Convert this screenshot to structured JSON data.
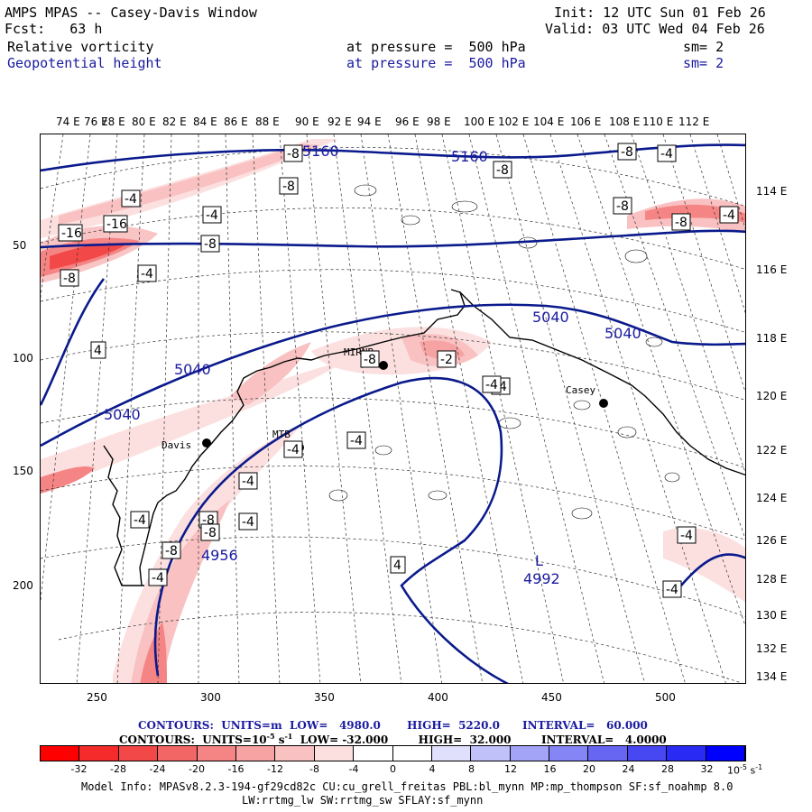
{
  "header": {
    "title": "AMPS MPAS -- Casey-Davis Window",
    "fcst": "Fcst:   63 h",
    "init": "Init: 12 UTC Sun 01 Feb 26",
    "valid": "Valid: 03 UTC Wed 04 Feb 26",
    "field1_name": "Relative vorticity",
    "field1_level": "at pressure =  500 hPa",
    "field1_sm": "sm= 2",
    "field2_name": "Geopotential height",
    "field2_level": "at pressure =  500 hPa",
    "field2_sm": "sm= 2"
  },
  "axes": {
    "top_labels": [
      "74 E",
      "76 E",
      "78 E",
      "80 E",
      "82 E",
      "84 E",
      "86 E",
      "88 E",
      "90 E",
      "92 E",
      "94 E",
      "96 E",
      "98 E",
      "100 E",
      "102 E",
      "104 E",
      "106 E",
      "108 E",
      "110 E",
      "112 E"
    ],
    "right_labels": [
      "114 E",
      "116 E",
      "118 E",
      "120 E",
      "122 E",
      "124 E",
      "126 E",
      "128 E",
      "130 E",
      "132 E",
      "134 E"
    ],
    "left_labels": [
      "50",
      "100",
      "150",
      "200"
    ],
    "bottom_labels": [
      "250",
      "300",
      "350",
      "400",
      "450",
      "500"
    ]
  },
  "stations": [
    {
      "name": "Davis"
    },
    {
      "name": "MTB"
    },
    {
      "name": "MIRNB"
    },
    {
      "name": "Casey"
    }
  ],
  "height_labels": [
    "5160",
    "5160",
    "5040",
    "5040",
    "5040",
    "5040",
    "4956",
    "4992"
  ],
  "low_marker": "L",
  "vort_labels": [
    "-8",
    "-8",
    "-16",
    "-16",
    "-8",
    "-4",
    "-4",
    "-8",
    "-4",
    "-8",
    "-4",
    "-8",
    "-4",
    "-8",
    "-8",
    "-4",
    "-4",
    "4",
    "-8",
    "-2",
    "-4",
    "-4",
    "-4",
    "-8",
    "-4",
    "-8",
    "-4",
    "-8",
    "-4",
    "4",
    "-4",
    "-4"
  ],
  "contours_line1": "CONTOURS:  UNITS=m  LOW=   4980.0       HIGH=  5220.0      INTERVAL=   60.000",
  "contours_line2_a": "CONTOURS:  UNITS=10",
  "contours_line2_b": " s",
  "contours_line2_c": "  LOW= -32.000        HIGH=  32.000        INTERVAL=   4.0000",
  "contours_sup1": "-5",
  "contours_sup2": "-1",
  "colorbar": {
    "values": [
      "-32",
      "-28",
      "-24",
      "-20",
      "-16",
      "-12",
      "-8",
      "-4",
      "0",
      "4",
      "8",
      "12",
      "16",
      "20",
      "24",
      "28",
      "32"
    ],
    "colors": [
      "#ff0000",
      "#f52a2a",
      "#f24848",
      "#f36666",
      "#f58585",
      "#f7a3a3",
      "#f9c1c1",
      "#fce0e0",
      "#ffffff",
      "#ffffff",
      "#e0e0fc",
      "#c1c1f9",
      "#a3a3f7",
      "#8585f5",
      "#6666f3",
      "#4848f2",
      "#2a2af5",
      "#0000ff"
    ],
    "unit_base": "10",
    "unit_exp": "-5",
    "unit_s": " s",
    "unit_s_exp": "-1"
  },
  "model_info": "Model Info: MPASv8.2.3-194-gf29cd82c CU:cu_grell_freitas PBL:bl_mynn MP:mp_thompson SF:sf_noahmp 8.0",
  "model_info2": "LW:rrtmg_lw SW:rrtmg_sw SFLAY:sf_mynn"
}
